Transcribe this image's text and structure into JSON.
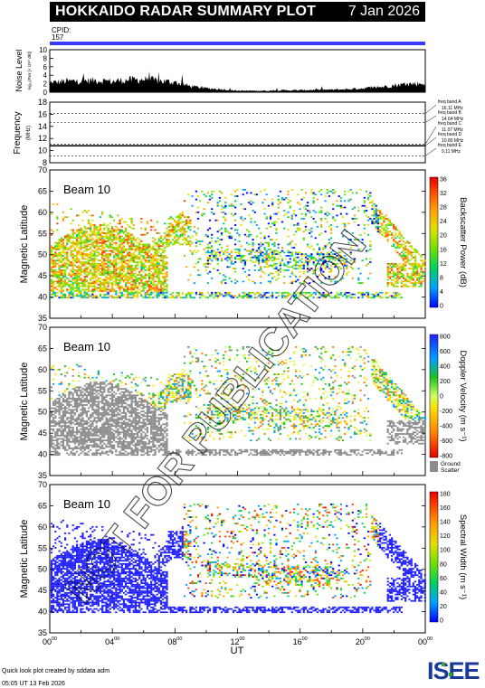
{
  "title": "HOKKAIDO RADAR SUMMARY PLOT",
  "date": "7 Jan 2026",
  "cpid_label": "CPID:",
  "cpid_value": "157",
  "noise_label": "Noise Level",
  "noise_sublabel": "log₁₀(Pwr [× 10¹⁰ dB])",
  "freq_label": "Frequency",
  "freq_unit": "(MHz)",
  "freq_bands": [
    {
      "name": "freq band A",
      "value": "16.11 MHz",
      "freq": 16.11
    },
    {
      "name": "freq band B",
      "value": "14.64 MHz",
      "freq": 14.64
    },
    {
      "name": "freq band C",
      "value": "11.07 MHz",
      "freq": 11.07
    },
    {
      "name": "freq band D",
      "value": "10.80 MHz",
      "freq": 10.8
    },
    {
      "name": "freq band E",
      "value": "9.11 MHz",
      "freq": 9.11
    }
  ],
  "panels": [
    {
      "beam": "Beam 10",
      "cbar_label": "Backscatter Power (dB)",
      "cbar_ticks": [
        "0",
        "4",
        "8",
        "12",
        "16",
        "20",
        "24",
        "28",
        "32",
        "36"
      ],
      "type": "power"
    },
    {
      "beam": "Beam 10",
      "cbar_label": "Doppler Velocity (m s⁻¹)",
      "cbar_ticks": [
        "-800",
        "-600",
        "-400",
        "-200",
        "0",
        "200",
        "400",
        "600",
        "800"
      ],
      "type": "velocity",
      "ground_label1": "Ground",
      "ground_label2": "Scatter"
    },
    {
      "beam": "Beam 10",
      "cbar_label": "Spectral Width (m s⁻¹)",
      "cbar_ticks": [
        "0",
        "20",
        "40",
        "60",
        "80",
        "100",
        "120",
        "140",
        "160",
        "180"
      ],
      "type": "width"
    }
  ],
  "ylabel": "Magnetic Latitude",
  "xlabel": "UT",
  "watermark": "NOT FOR PUBLICATION",
  "footer_line1": "Quick look plot created by sddata adm",
  "footer_line2": "05:05 UT 13 Feb 2026",
  "logo": "ISEE",
  "colors": {
    "accent": "#3a3aff",
    "ground": "#8c8c8c"
  },
  "chart_data": [
    {
      "type": "area",
      "title": "",
      "ylabel": "Noise Level",
      "ylim": [
        0,
        10
      ],
      "yticks": [
        "0",
        "2",
        "4",
        "6",
        "8",
        "10"
      ],
      "x_hours": [
        0,
        1,
        2,
        3,
        4,
        5,
        6,
        7,
        8,
        9,
        10,
        11,
        12,
        13,
        14,
        15,
        16,
        17,
        18,
        19,
        20,
        21,
        22,
        23,
        24
      ],
      "values": [
        1.9,
        2.2,
        2.3,
        2.4,
        2.2,
        2.5,
        2.6,
        2.3,
        2.0,
        1.2,
        0.8,
        0.6,
        0.3,
        0.3,
        0.3,
        0.4,
        0.4,
        0.5,
        0.5,
        0.6,
        0.8,
        1.0,
        1.4,
        1.7,
        1.8
      ]
    },
    {
      "type": "line",
      "ylabel": "Frequency",
      "ylim": [
        8,
        18
      ],
      "yticks": [
        "8",
        "10",
        "12",
        "14",
        "16",
        "18"
      ],
      "dashed_levels": [
        16.11,
        14.64,
        11.07,
        10.8,
        9.11
      ]
    },
    {
      "type": "heatmap",
      "ylabel": "Magnetic Latitude",
      "xlabel": "UT",
      "ylim": [
        35,
        70
      ],
      "yticks": [
        "35",
        "40",
        "45",
        "50",
        "55",
        "60",
        "65",
        "70"
      ],
      "xlim": [
        0,
        24
      ],
      "xticks": [
        "00",
        "04",
        "08",
        "12",
        "16",
        "20",
        "00"
      ]
    }
  ]
}
